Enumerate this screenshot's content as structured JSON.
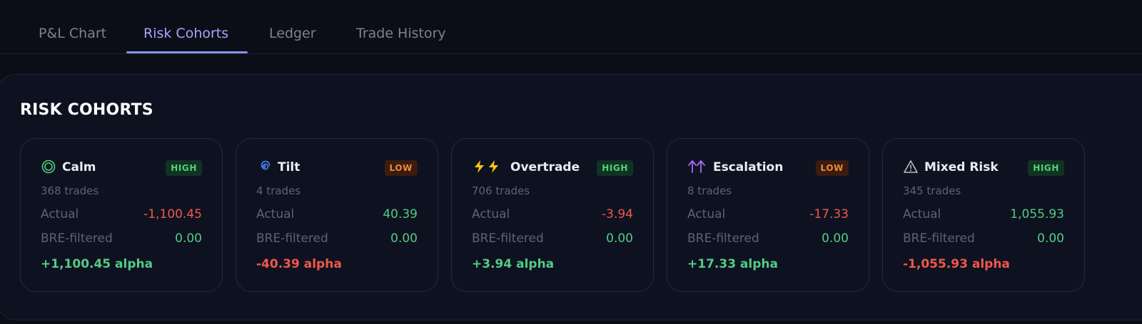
{
  "tabs": [
    {
      "label": "P&L Chart",
      "active": false
    },
    {
      "label": "Risk Cohorts",
      "active": true
    },
    {
      "label": "Ledger",
      "active": false
    },
    {
      "label": "Trade History",
      "active": false
    }
  ],
  "section_title": "RISK COHORTS",
  "row_labels": {
    "actual": "Actual",
    "filtered": "BRE-filtered"
  },
  "colors": {
    "positive": "#55c985",
    "negative": "#f0584c",
    "accent": "#8b8cf8",
    "high_badge": "#4fd27a",
    "low_badge": "#f0893a"
  },
  "cohorts": [
    {
      "name": "Calm",
      "icon": "target-circle-icon",
      "badge": "HIGH",
      "trades": "368 trades",
      "actual": "-1,100.45",
      "actual_sign": "negative",
      "filtered": "0.00",
      "alpha": "+1,100.45 alpha",
      "alpha_sign": "positive"
    },
    {
      "name": "Tilt",
      "icon": "cyclone-icon",
      "badge": "LOW",
      "trades": "4 trades",
      "actual": "40.39",
      "actual_sign": "positive",
      "filtered": "0.00",
      "alpha": "-40.39 alpha",
      "alpha_sign": "negative"
    },
    {
      "name": "Overtrade",
      "icon": "double-lightning-icon",
      "badge": "HIGH",
      "trades": "706 trades",
      "actual": "-3.94",
      "actual_sign": "negative",
      "filtered": "0.00",
      "alpha": "+3.94 alpha",
      "alpha_sign": "positive"
    },
    {
      "name": "Escalation",
      "icon": "double-up-arrow-icon",
      "badge": "LOW",
      "trades": "8 trades",
      "actual": "-17.33",
      "actual_sign": "negative",
      "filtered": "0.00",
      "alpha": "+17.33 alpha",
      "alpha_sign": "positive"
    },
    {
      "name": "Mixed Risk",
      "icon": "warning-triangle-icon",
      "badge": "HIGH",
      "trades": "345 trades",
      "actual": "1,055.93",
      "actual_sign": "positive",
      "filtered": "0.00",
      "alpha": "-1,055.93 alpha",
      "alpha_sign": "negative"
    }
  ]
}
